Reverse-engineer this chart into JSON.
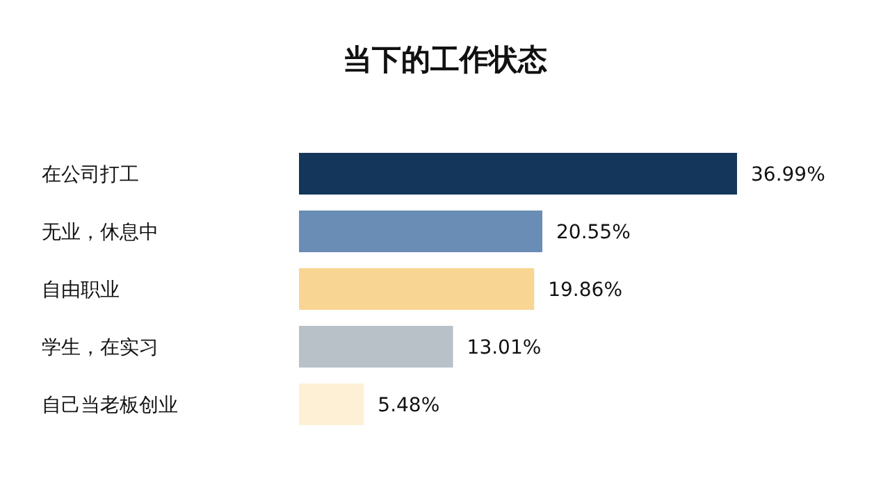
{
  "chart_data": {
    "type": "bar",
    "orientation": "horizontal",
    "title": "当下的工作状态",
    "categories": [
      "在公司打工",
      "无业，休息中",
      "自由职业",
      "学生，在实习",
      "自己当老板创业"
    ],
    "values": [
      36.99,
      20.55,
      19.86,
      13.01,
      5.48
    ],
    "colors": [
      "#14365a",
      "#6a8db5",
      "#f9d594",
      "#b9c1c8",
      "#fdf0d5"
    ],
    "value_labels": [
      "36.99%",
      "20.55%",
      "19.86%",
      "13.01%",
      "5.48%"
    ]
  }
}
